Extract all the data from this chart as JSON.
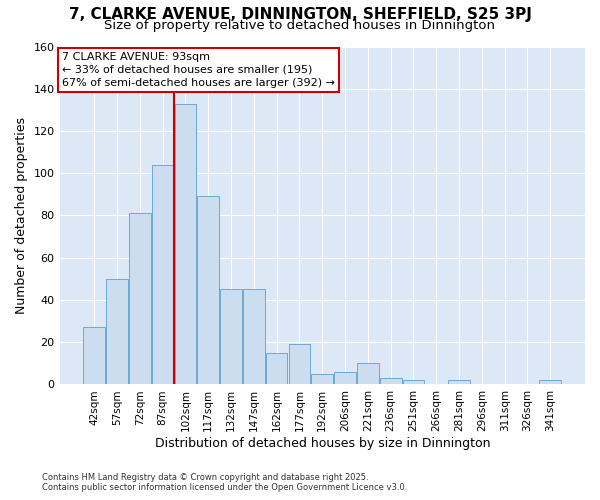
{
  "title": "7, CLARKE AVENUE, DINNINGTON, SHEFFIELD, S25 3PJ",
  "subtitle": "Size of property relative to detached houses in Dinnington",
  "xlabel": "Distribution of detached houses by size in Dinnington",
  "ylabel": "Number of detached properties",
  "bar_color": "#ccddf0",
  "bar_edge_color": "#6aaad4",
  "background_color": "#dce8f5",
  "grid_color": "#ffffff",
  "fig_background": "#ffffff",
  "categories": [
    "42sqm",
    "57sqm",
    "72sqm",
    "87sqm",
    "102sqm",
    "117sqm",
    "132sqm",
    "147sqm",
    "162sqm",
    "177sqm",
    "192sqm",
    "206sqm",
    "221sqm",
    "236sqm",
    "251sqm",
    "266sqm",
    "281sqm",
    "296sqm",
    "311sqm",
    "326sqm",
    "341sqm"
  ],
  "values": [
    27,
    50,
    81,
    104,
    133,
    89,
    45,
    45,
    15,
    19,
    5,
    6,
    10,
    3,
    2,
    0,
    2,
    0,
    0,
    0,
    2
  ],
  "annotation_line1": "7 CLARKE AVENUE: 93sqm",
  "annotation_line2": "← 33% of detached houses are smaller (195)",
  "annotation_line3": "67% of semi-detached houses are larger (392) →",
  "annotation_box_color": "#ffffff",
  "annotation_box_edge_color": "#cc0000",
  "vline_color": "#cc0000",
  "footnote": "Contains HM Land Registry data © Crown copyright and database right 2025.\nContains public sector information licensed under the Open Government Licence v3.0.",
  "ylim": [
    0,
    160
  ],
  "title_fontsize": 11,
  "subtitle_fontsize": 9.5,
  "tick_fontsize": 7.5,
  "ylabel_fontsize": 9,
  "xlabel_fontsize": 9,
  "annotation_fontsize": 8,
  "vline_x": 3.5
}
